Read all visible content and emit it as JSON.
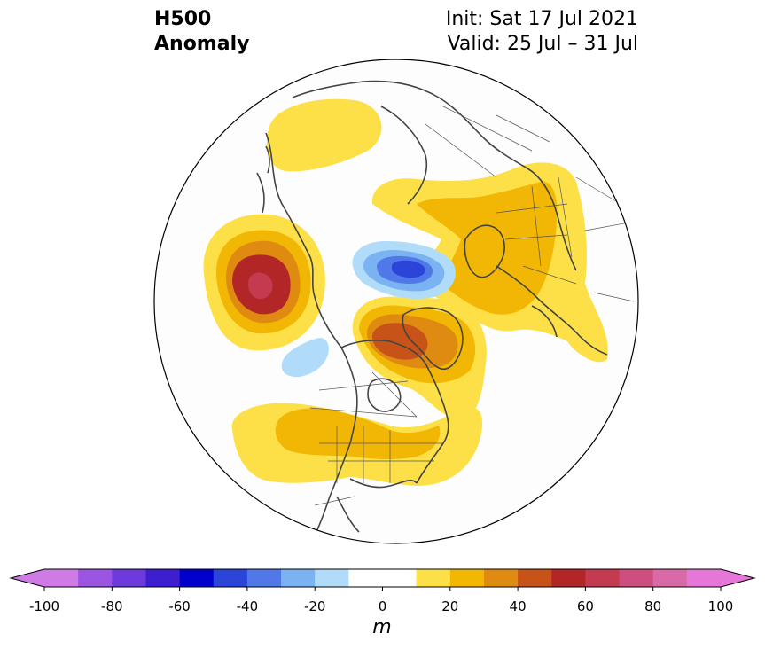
{
  "title": {
    "left_line1": "H500",
    "left_line2": "Anomaly",
    "right_line1": "Init: Sat 17 Jul 2021",
    "right_line2": "Valid: 25 Jul – 31 Jul"
  },
  "colorbar": {
    "unit": "m",
    "tick_labels": [
      "-100",
      "-80",
      "-60",
      "-40",
      "-20",
      "0",
      "20",
      "40",
      "60",
      "80",
      "100"
    ],
    "colors": [
      "#d07ae6",
      "#9c55e0",
      "#6d3bdb",
      "#3d1fd0",
      "#0000cc",
      "#2a45d8",
      "#5078e8",
      "#7ab2f2",
      "#b0dcfa",
      "#ffffff",
      "#ffffff",
      "#fde047",
      "#f2b705",
      "#df8a10",
      "#c85318",
      "#b32628",
      "#c43a4f",
      "#cc4f80",
      "#d96aa8",
      "#e676d8"
    ]
  },
  "map": {
    "projection": "north-polar-stereographic",
    "anomalies": [
      {
        "region": "north-pacific",
        "sign": "positive",
        "max_level": 70
      },
      {
        "region": "northern-europe-russia",
        "sign": "positive",
        "max_level": 30
      },
      {
        "region": "greenland-canadian-arctic",
        "sign": "positive",
        "max_level": 50
      },
      {
        "region": "united-states-canada",
        "sign": "positive",
        "max_level": 30
      },
      {
        "region": "central-arctic-siberia",
        "sign": "negative",
        "min_level": -40
      },
      {
        "region": "gulf-of-alaska",
        "sign": "negative",
        "min_level": -20
      }
    ]
  }
}
